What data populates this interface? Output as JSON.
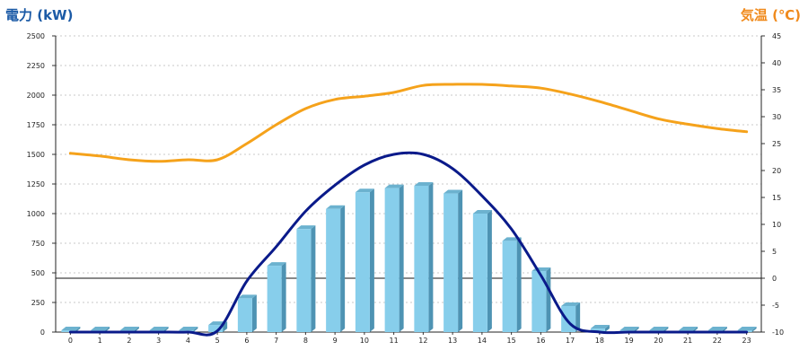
{
  "chart_data": {
    "type": "bar",
    "y_left_title": "電力 (kW)",
    "y_right_title": "気温 (℃)",
    "left_axis": {
      "min": 0,
      "max": 2500,
      "ticks": [
        "0",
        "250",
        "500",
        "750",
        "1000",
        "1250",
        "1500",
        "1750",
        "2000",
        "2250",
        "2500"
      ]
    },
    "right_axis": {
      "min": -10,
      "max": 45,
      "ticks": [
        "-10",
        "-5",
        "0",
        "5",
        "10",
        "15",
        "20",
        "25",
        "30",
        "35",
        "40",
        "45"
      ]
    },
    "categories": [
      "0",
      "1",
      "2",
      "3",
      "4",
      "5",
      "6",
      "7",
      "8",
      "9",
      "10",
      "11",
      "12",
      "13",
      "14",
      "15",
      "16",
      "17",
      "18",
      "19",
      "20",
      "21",
      "22",
      "23"
    ],
    "grid": true,
    "series": [
      {
        "kind": "bar",
        "axis": "left",
        "color": "#87ceeb",
        "values": [
          15,
          15,
          15,
          15,
          15,
          60,
          285,
          560,
          870,
          1040,
          1180,
          1215,
          1235,
          1170,
          1000,
          770,
          515,
          220,
          30,
          15,
          15,
          15,
          15,
          15
        ]
      },
      {
        "kind": "line",
        "axis": "left",
        "color": "#0a1a8a",
        "values": [
          0,
          0,
          0,
          0,
          0,
          10,
          430,
          720,
          1020,
          1240,
          1410,
          1500,
          1500,
          1380,
          1150,
          870,
          480,
          70,
          0,
          0,
          0,
          0,
          0,
          0
        ]
      },
      {
        "kind": "line",
        "axis": "right",
        "color": "#f5a21b",
        "values": [
          23.2,
          22.7,
          22.0,
          21.7,
          22.0,
          22.0,
          25.0,
          28.5,
          31.5,
          33.2,
          33.8,
          34.5,
          35.8,
          36.0,
          36.0,
          35.7,
          35.3,
          34.2,
          32.8,
          31.2,
          29.6,
          28.6,
          27.8,
          27.2
        ]
      }
    ]
  }
}
